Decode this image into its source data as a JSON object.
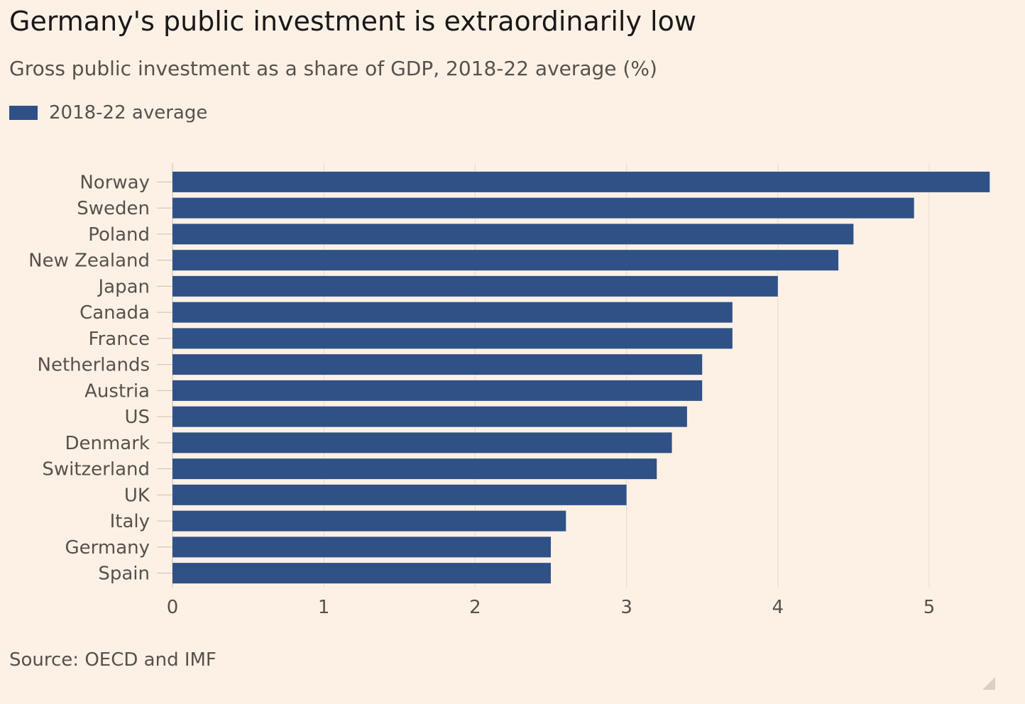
{
  "header": {
    "title": "Germany's public investment is extraordinarily low",
    "subtitle": "Gross public investment as a share of GDP, 2018-22 average (%)"
  },
  "legend": {
    "label": "2018-22 average"
  },
  "footer": {
    "source": "Source: OECD and IMF"
  },
  "colors": {
    "bar": "#2f5185",
    "grid": "#e3dad1",
    "tick_text": "#57514c",
    "axis": "#c9c0b8"
  },
  "chart_data": {
    "type": "bar",
    "orientation": "horizontal",
    "categories": [
      "Norway",
      "Sweden",
      "Poland",
      "New Zealand",
      "Japan",
      "Canada",
      "France",
      "Netherlands",
      "Austria",
      "US",
      "Denmark",
      "Switzerland",
      "UK",
      "Italy",
      "Germany",
      "Spain"
    ],
    "series": [
      {
        "name": "2018-22 average",
        "values": [
          5.4,
          4.9,
          4.5,
          4.4,
          4.0,
          3.7,
          3.7,
          3.5,
          3.5,
          3.4,
          3.3,
          3.2,
          3.0,
          2.6,
          2.5,
          2.5
        ]
      }
    ],
    "x_ticks": [
      0,
      1,
      2,
      3,
      4,
      5
    ],
    "xlim": [
      0,
      5.45
    ],
    "grid": true,
    "legend_position": "top-left"
  }
}
